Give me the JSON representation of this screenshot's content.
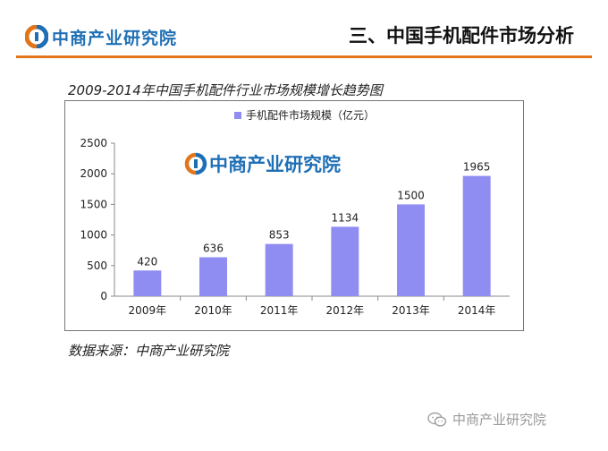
{
  "header": {
    "logo_text": "中商产业研究院",
    "title": "三、中国手机配件市场分析"
  },
  "chart_title": "2009-2014年中国手机配件行业市场规模增长趋势图",
  "chart_data": {
    "type": "bar",
    "title": "2009-2014年中国手机配件行业市场规模增长趋势图",
    "categories": [
      "2009年",
      "2010年",
      "2011年",
      "2012年",
      "2013年",
      "2014年"
    ],
    "series": [
      {
        "name": "手机配件市场规模（亿元）",
        "values": [
          420,
          636,
          853,
          1134,
          1500,
          1965
        ]
      }
    ],
    "ylim": [
      0,
      2500
    ],
    "yticks": [
      0,
      500,
      1000,
      1500,
      2000,
      2500
    ],
    "grid": false,
    "legend": "top-center",
    "bar_color": "#8f8cf2",
    "watermark_text": "中商产业研究院"
  },
  "source": "数据来源：中商产业研究院",
  "footer_watermark": "中商产业研究院",
  "colors": {
    "brand_blue": "#1f6fb5",
    "brand_orange": "#e2751a",
    "bar": "#8f8cf2"
  }
}
